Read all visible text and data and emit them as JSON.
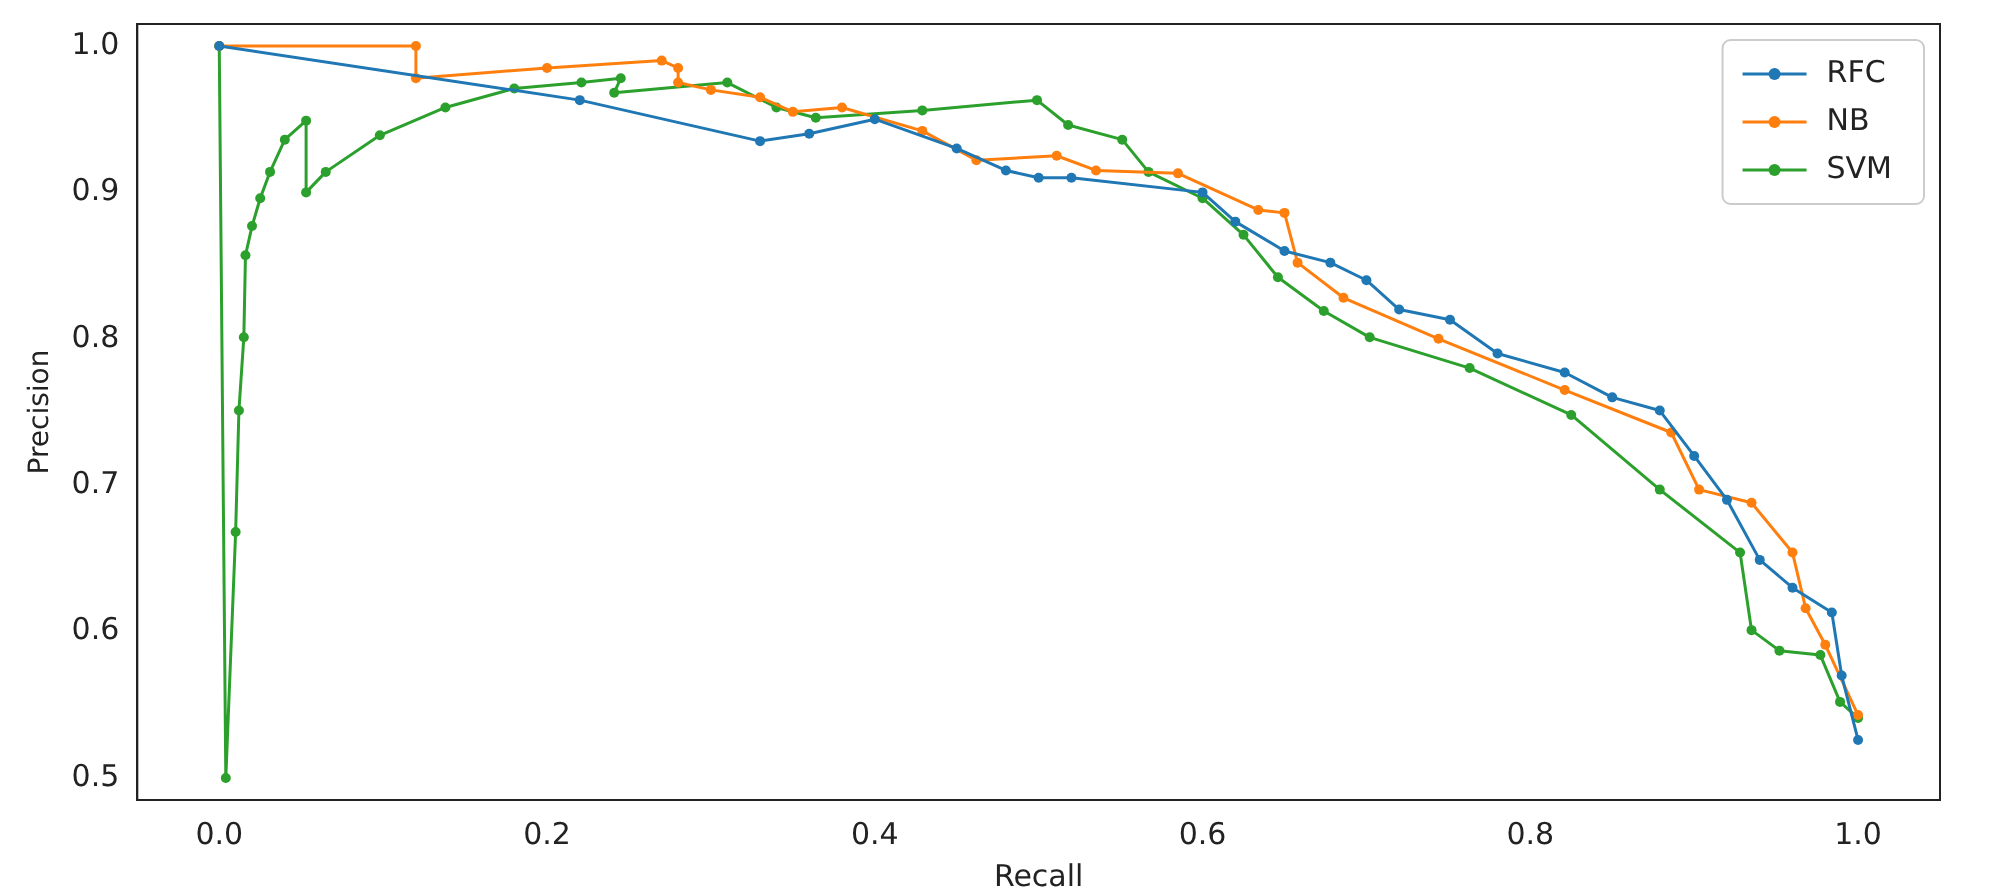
{
  "chart_data": {
    "type": "line",
    "xlabel": "Recall",
    "ylabel": "Precision",
    "xlim": [
      -0.05,
      1.05
    ],
    "ylim": [
      0.485,
      1.015
    ],
    "xticks": [
      {
        "value": 0,
        "label": "0.0"
      },
      0.2,
      0.4,
      0.6,
      0.8,
      {
        "value": 1,
        "label": "1.0"
      }
    ],
    "yticks": [
      0.5,
      0.6,
      0.7,
      0.8,
      0.9,
      {
        "value": 1,
        "label": "1.0"
      }
    ],
    "legend": "top right",
    "marker": "circle",
    "grid": false,
    "series": [
      {
        "name": "RFC",
        "color": "#1f77b4",
        "x": [
          0,
          0.22,
          0.33,
          0.36,
          0.4,
          0.45,
          0.48,
          0.5,
          0.52,
          0.6,
          0.62,
          0.65,
          0.678,
          0.7,
          0.72,
          0.751,
          0.78,
          0.821,
          0.85,
          0.879,
          0.9,
          0.92,
          0.94,
          0.96,
          0.984,
          0.99,
          1.0
        ],
        "values": [
          1.0,
          0.963,
          0.935,
          0.94,
          0.95,
          0.93,
          0.915,
          0.91,
          0.91,
          0.9,
          0.88,
          0.86,
          0.852,
          0.84,
          0.82,
          0.813,
          0.79,
          0.777,
          0.76,
          0.751,
          0.72,
          0.69,
          0.649,
          0.63,
          0.613,
          0.57,
          0.526
        ]
      },
      {
        "name": "NB",
        "color": "#ff7f0e",
        "x": [
          0,
          0.12,
          0.12,
          0.2,
          0.27,
          0.28,
          0.28,
          0.3,
          0.33,
          0.35,
          0.38,
          0.429,
          0.462,
          0.511,
          0.535,
          0.585,
          0.634,
          0.65,
          0.658,
          0.686,
          0.744,
          0.821,
          0.886,
          0.903,
          0.935,
          0.96,
          0.968,
          0.98,
          1.0
        ],
        "values": [
          1.0,
          1.0,
          0.978,
          0.985,
          0.99,
          0.985,
          0.975,
          0.97,
          0.965,
          0.955,
          0.958,
          0.942,
          0.922,
          0.925,
          0.915,
          0.913,
          0.888,
          0.886,
          0.852,
          0.828,
          0.8,
          0.765,
          0.736,
          0.697,
          0.688,
          0.654,
          0.616,
          0.591,
          0.543
        ]
      },
      {
        "name": "SVM",
        "color": "#2ca02c",
        "x": [
          0,
          0.004,
          0.01,
          0.012,
          0.015,
          0.016,
          0.02,
          0.025,
          0.031,
          0.04,
          0.053,
          0.053,
          0.065,
          0.098,
          0.138,
          0.18,
          0.221,
          0.245,
          0.241,
          0.31,
          0.34,
          0.364,
          0.429,
          0.499,
          0.518,
          0.551,
          0.567,
          0.6,
          0.625,
          0.646,
          0.674,
          0.702,
          0.763,
          0.825,
          0.879,
          0.928,
          0.935,
          0.952,
          0.977,
          0.989,
          1.0
        ],
        "values": [
          1.0,
          0.5,
          0.668,
          0.751,
          0.801,
          0.857,
          0.877,
          0.896,
          0.914,
          0.936,
          0.949,
          0.9,
          0.914,
          0.939,
          0.958,
          0.971,
          0.975,
          0.978,
          0.968,
          0.975,
          0.958,
          0.951,
          0.956,
          0.963,
          0.946,
          0.936,
          0.914,
          0.896,
          0.871,
          0.842,
          0.819,
          0.801,
          0.78,
          0.748,
          0.697,
          0.654,
          0.601,
          0.587,
          0.584,
          0.552,
          0.541
        ]
      }
    ]
  }
}
